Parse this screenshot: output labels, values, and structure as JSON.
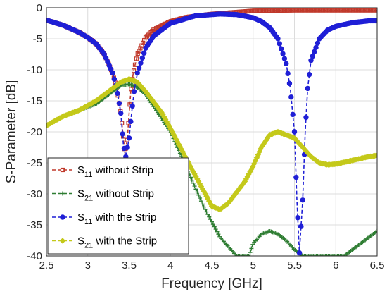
{
  "chart_data": {
    "type": "line",
    "xlabel": "Frequency [GHz]",
    "ylabel": "S-Parameter [dB]",
    "xlim": [
      2.5,
      6.5
    ],
    "ylim": [
      -40,
      0
    ],
    "xticks": [
      "2.5",
      "3",
      "3.5",
      "4",
      "4.5",
      "5",
      "5.5",
      "6",
      "6.5"
    ],
    "yticks": [
      "0",
      "-5",
      "-10",
      "-15",
      "-20",
      "-25",
      "-30",
      "-35",
      "-40"
    ],
    "grid": true,
    "legend_position": "bottom-left",
    "series": [
      {
        "name": "S11 without Strip",
        "legend_main": "S",
        "legend_sub": "11",
        "legend_rest": " without Strip",
        "color": "#c0392b",
        "marker": "square",
        "line": "dashed",
        "x": [
          2.5,
          2.7,
          2.9,
          3.0,
          3.1,
          3.2,
          3.3,
          3.35,
          3.4,
          3.43,
          3.45,
          3.48,
          3.5,
          3.52,
          3.55,
          3.6,
          3.7,
          3.8,
          4.0,
          4.2,
          4.5,
          4.8,
          5.0,
          5.5,
          6.0,
          6.5
        ],
        "y": [
          -2.0,
          -2.8,
          -4.0,
          -4.8,
          -5.8,
          -7.5,
          -10.5,
          -13.0,
          -17.0,
          -21.0,
          -23.5,
          -21.0,
          -17.0,
          -13.5,
          -10.5,
          -7.5,
          -4.8,
          -3.5,
          -2.2,
          -1.5,
          -1.0,
          -0.7,
          -0.5,
          -0.4,
          -0.4,
          -0.4
        ]
      },
      {
        "name": "S21 without Strip",
        "legend_main": "S",
        "legend_sub": "21",
        "legend_rest": " without Strip",
        "color": "#2e7d32",
        "marker": "plus",
        "line": "dashed",
        "x": [
          2.5,
          2.7,
          2.9,
          3.1,
          3.3,
          3.4,
          3.5,
          3.6,
          3.7,
          3.8,
          4.0,
          4.2,
          4.4,
          4.6,
          4.8,
          4.95,
          5.0,
          5.1,
          5.2,
          5.3,
          5.4,
          5.5,
          5.6,
          5.7,
          5.8,
          5.9,
          6.0,
          6.1,
          6.2,
          6.3,
          6.4,
          6.5
        ],
        "y": [
          -19.0,
          -17.5,
          -16.5,
          -15.5,
          -13.5,
          -12.5,
          -12.3,
          -12.8,
          -14.0,
          -16.0,
          -20.0,
          -26.0,
          -32.0,
          -37.0,
          -40.0,
          -40.0,
          -38.0,
          -36.5,
          -36.0,
          -36.5,
          -37.5,
          -39.0,
          -40.0,
          -40.0,
          -40.0,
          -40.0,
          -40.0,
          -40.0,
          -39.0,
          -38.0,
          -37.0,
          -36.0
        ]
      },
      {
        "name": "S11 with the Strip",
        "legend_main": "S",
        "legend_sub": "11",
        "legend_rest": " with the Strip",
        "color": "#1f1fd6",
        "marker": "circle",
        "line": "dashed",
        "x": [
          2.5,
          2.7,
          2.9,
          3.0,
          3.1,
          3.2,
          3.3,
          3.35,
          3.4,
          3.43,
          3.46,
          3.5,
          3.53,
          3.56,
          3.6,
          3.7,
          3.8,
          4.0,
          4.3,
          4.6,
          4.8,
          5.0,
          5.1,
          5.2,
          5.3,
          5.4,
          5.45,
          5.5,
          5.53,
          5.56,
          5.6,
          5.63,
          5.66,
          5.7,
          5.8,
          5.9,
          6.0,
          6.2,
          6.4,
          6.5
        ],
        "y": [
          -2.0,
          -2.8,
          -4.0,
          -4.8,
          -5.8,
          -7.5,
          -10.5,
          -13.0,
          -17.0,
          -22.0,
          -24.0,
          -21.0,
          -17.0,
          -13.5,
          -10.5,
          -6.5,
          -4.5,
          -2.5,
          -1.3,
          -1.0,
          -1.1,
          -1.6,
          -2.2,
          -3.2,
          -5.0,
          -9.0,
          -13.0,
          -20.0,
          -31.0,
          -39.5,
          -31.0,
          -20.0,
          -13.0,
          -8.5,
          -5.0,
          -3.6,
          -3.0,
          -2.4,
          -2.1,
          -2.1
        ]
      },
      {
        "name": "S21 with the Strip",
        "legend_main": "S",
        "legend_sub": "21",
        "legend_rest": " with the Strip",
        "color": "#c4c91a",
        "marker": "diamond",
        "line": "dashed",
        "x": [
          2.5,
          2.7,
          2.9,
          3.1,
          3.3,
          3.4,
          3.5,
          3.6,
          3.7,
          3.9,
          4.1,
          4.3,
          4.5,
          4.6,
          4.7,
          4.9,
          5.0,
          5.1,
          5.2,
          5.3,
          5.4,
          5.5,
          5.6,
          5.7,
          5.8,
          5.9,
          6.0,
          6.2,
          6.4,
          6.5
        ],
        "y": [
          -19.0,
          -17.5,
          -16.5,
          -15.0,
          -13.0,
          -12.0,
          -11.5,
          -12.0,
          -13.5,
          -17.0,
          -22.0,
          -27.0,
          -32.0,
          -32.5,
          -31.5,
          -28.0,
          -25.5,
          -22.5,
          -20.5,
          -20.0,
          -20.5,
          -21.0,
          -22.5,
          -24.0,
          -25.0,
          -25.3,
          -25.2,
          -24.6,
          -24.0,
          -23.8
        ]
      }
    ]
  }
}
